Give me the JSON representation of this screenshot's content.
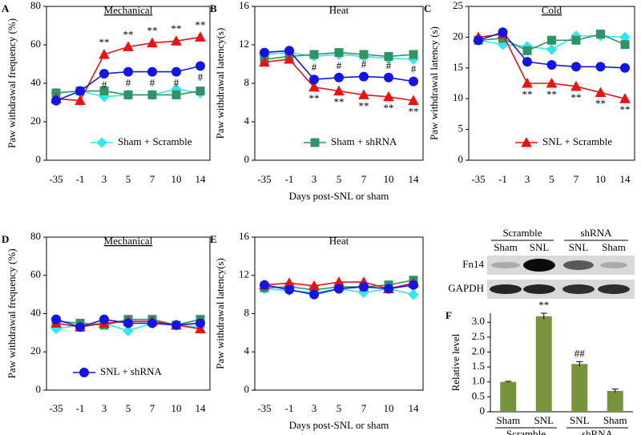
{
  "chart_data": [
    {
      "type": "line",
      "panel": "A",
      "title": "Mechanical",
      "title_underline": true,
      "y_label": "Paw withdrawal frequency (%)",
      "categories": [
        "-35",
        "-1",
        "3",
        "5",
        "7",
        "10",
        "14"
      ],
      "ylim": [
        0,
        80
      ],
      "yticks": [
        0,
        20,
        40,
        60,
        80
      ],
      "legend_loc": "lower right",
      "series": [
        {
          "name": "Sham + Scramble",
          "color": "#33e6ee",
          "marker": "diamond",
          "values": [
            35,
            36,
            33,
            34,
            34,
            37,
            35
          ]
        },
        {
          "color": "#2e9466",
          "marker": "square",
          "values": [
            35,
            36,
            36,
            34,
            34,
            34,
            36
          ]
        },
        {
          "color": "#ee1111",
          "marker": "triangle",
          "values": [
            32,
            31,
            55,
            59,
            61,
            62,
            64
          ],
          "point_labels": [
            null,
            null,
            "**",
            "**",
            "**",
            "**",
            "**"
          ],
          "point_label_side": "above"
        },
        {
          "color": "#1414e6",
          "marker": "circle",
          "values": [
            31,
            36,
            45,
            46,
            46,
            46,
            49
          ],
          "point_labels": [
            null,
            null,
            "#",
            "#",
            "#",
            "#",
            "#"
          ],
          "point_label_side": "below"
        }
      ]
    },
    {
      "type": "line",
      "panel": "B",
      "title": "Heat",
      "title_underline": false,
      "y_label": "Paw withdrawal latency(s)",
      "x_label": "Days post-SNL or sham",
      "categories": [
        "-35",
        "-1",
        "3",
        "5",
        "7",
        "10",
        "14"
      ],
      "ylim": [
        0,
        16
      ],
      "yticks": [
        0,
        4,
        8,
        12,
        16
      ],
      "legend_loc": "lower right",
      "series": [
        {
          "color": "#33e6ee",
          "marker": "diamond",
          "values": [
            11,
            11.2,
            10.8,
            11,
            10.8,
            10.6,
            10.5
          ]
        },
        {
          "name": "Sham + shRNA",
          "color": "#2e9466",
          "marker": "square",
          "values": [
            10.5,
            10.8,
            11,
            11.2,
            11,
            10.8,
            11
          ]
        },
        {
          "color": "#ee1111",
          "marker": "triangle",
          "values": [
            10.2,
            10.5,
            7.6,
            7.2,
            6.8,
            6.6,
            6.2
          ],
          "point_labels": [
            null,
            null,
            "**",
            "**",
            "**",
            "**",
            "**"
          ],
          "point_label_side": "below"
        },
        {
          "color": "#1414e6",
          "marker": "circle",
          "values": [
            11.2,
            11.4,
            8.4,
            8.6,
            8.7,
            8.6,
            8.2
          ],
          "point_labels": [
            null,
            null,
            "#",
            "#",
            "#",
            "#",
            "#"
          ],
          "point_label_side": "above"
        }
      ]
    },
    {
      "type": "line",
      "panel": "C",
      "title": "Cold",
      "title_underline": true,
      "y_label": "Paw withdrawal  latency (s)",
      "categories": [
        "-35",
        "-1",
        "3",
        "5",
        "7",
        "10",
        "14"
      ],
      "ylim": [
        0,
        25
      ],
      "yticks": [
        0,
        5,
        10,
        15,
        20,
        25
      ],
      "legend_loc": "lower right",
      "series": [
        {
          "color": "#33e6ee",
          "marker": "diamond",
          "values": [
            19.5,
            18.8,
            18.5,
            18,
            20.2,
            20.2,
            20
          ]
        },
        {
          "color": "#2e9466",
          "marker": "square",
          "values": [
            19.5,
            19.8,
            17.8,
            19.5,
            19.5,
            20.5,
            18.8
          ]
        },
        {
          "name": "SNL + Scramble",
          "color": "#ee1111",
          "marker": "triangle",
          "values": [
            20,
            20.5,
            12.5,
            12.5,
            12,
            11,
            10
          ],
          "point_labels": [
            null,
            null,
            "**",
            "**",
            "**",
            "**",
            "**"
          ],
          "point_label_side": "below"
        },
        {
          "color": "#1414e6",
          "marker": "circle",
          "values": [
            19.5,
            20.8,
            16,
            15.5,
            15.2,
            15.2,
            15
          ]
        }
      ]
    },
    {
      "type": "line",
      "panel": "D",
      "title": "Mechanical",
      "title_underline": true,
      "y_label": "Paw withdrawal frequency (%)",
      "categories": [
        "-35",
        "-1",
        "3",
        "5",
        "7",
        "10",
        "14"
      ],
      "ylim": [
        0,
        80
      ],
      "yticks": [
        0,
        20,
        40,
        60,
        80
      ],
      "legend_loc": "lower center",
      "series": [
        {
          "color": "#33e6ee",
          "marker": "diamond",
          "values": [
            32,
            34,
            35,
            31,
            35,
            34,
            33
          ]
        },
        {
          "color": "#2e9466",
          "marker": "square",
          "values": [
            36,
            35,
            34,
            37,
            37,
            34,
            37
          ]
        },
        {
          "color": "#ee1111",
          "marker": "triangle",
          "values": [
            35,
            33,
            35,
            36,
            36,
            34,
            32
          ]
        },
        {
          "name": "SNL + shRNA",
          "color": "#1414e6",
          "marker": "circle",
          "values": [
            37,
            33,
            37,
            35,
            35,
            34,
            35
          ]
        }
      ]
    },
    {
      "type": "line",
      "panel": "E",
      "title": "Heat",
      "title_underline": false,
      "y_label": "Paw withdrawal latency(s)",
      "x_label": "Days post-SNL or sham",
      "categories": [
        "-35",
        "-1",
        "3",
        "5",
        "7",
        "10",
        "14"
      ],
      "ylim": [
        0,
        16
      ],
      "yticks": [
        0,
        4,
        8,
        12,
        16
      ],
      "series": [
        {
          "color": "#33e6ee",
          "marker": "diamond",
          "values": [
            10.6,
            10.4,
            10.2,
            10.6,
            10.2,
            10.6,
            10
          ]
        },
        {
          "color": "#2e9466",
          "marker": "square",
          "values": [
            10.7,
            10.8,
            10.5,
            10.8,
            10.8,
            11,
            11.5
          ]
        },
        {
          "color": "#ee1111",
          "marker": "triangle",
          "values": [
            11,
            11.2,
            10.9,
            11.3,
            11.3,
            10.6,
            11.2
          ]
        },
        {
          "color": "#1414e6",
          "marker": "circle",
          "values": [
            11,
            10.5,
            10,
            10.6,
            10.8,
            10.6,
            11
          ]
        }
      ]
    },
    {
      "type": "bar",
      "panel": "F",
      "y_label": "Relative level",
      "color": "#77933c",
      "categories": [
        "Sham",
        "SNL",
        "SNL",
        "Sham"
      ],
      "group_labels": [
        "Scramble",
        "shRNA"
      ],
      "values": [
        1.0,
        3.2,
        1.6,
        0.7
      ],
      "errors": [
        0.02,
        0.1,
        0.08,
        0.06
      ],
      "bar_labels": [
        null,
        "**",
        "##",
        null
      ],
      "ylim": [
        0,
        3.3
      ],
      "yticks": [
        0,
        0.5,
        {
          "value": 1,
          "label": "1.0"
        },
        1.5,
        {
          "value": 2,
          "label": "2.0"
        },
        2.5,
        {
          "value": 3,
          "label": "3.0"
        }
      ],
      "blot": {
        "group_labels": [
          "Scramble",
          "shRNA"
        ],
        "lanes": [
          "Sham",
          "SNL",
          "SNL",
          "Sham"
        ],
        "rows": [
          "Fn14",
          "GAPDH"
        ]
      }
    }
  ]
}
